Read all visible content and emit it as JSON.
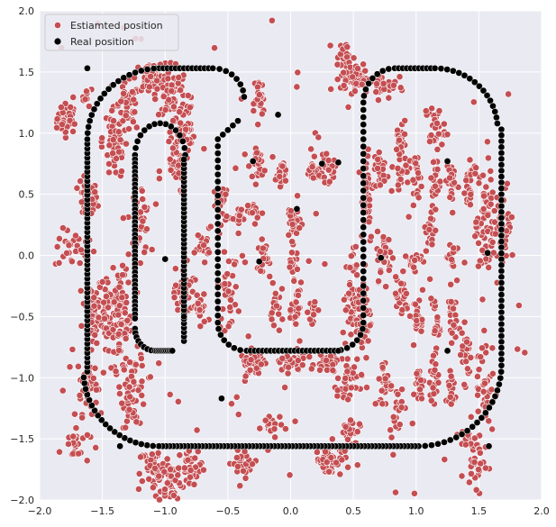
{
  "chart_data": {
    "type": "scatter",
    "title": "",
    "xlabel": "",
    "ylabel": "",
    "xlim": [
      -2.0,
      2.0
    ],
    "ylim": [
      -2.0,
      2.0
    ],
    "xticks": [
      -2.0,
      -1.5,
      -1.0,
      -0.5,
      0.0,
      0.5,
      1.0,
      1.5,
      2.0
    ],
    "yticks": [
      -2.0,
      -1.5,
      -1.0,
      -0.5,
      0.0,
      0.5,
      1.0,
      1.5,
      2.0
    ],
    "xtick_labels": [
      "−2.0",
      "−1.5",
      "−1.0",
      "−0.5",
      "0.0",
      "0.5",
      "1.0",
      "1.5",
      "2.0"
    ],
    "ytick_labels": [
      "−2.0",
      "−1.5",
      "−1.0",
      "−0.5",
      "0.0",
      "0.5",
      "1.0",
      "1.5",
      "2.0"
    ],
    "grid": true,
    "legend_position": "top-left",
    "background_color": "#eaeaf2",
    "series": [
      {
        "name": "Estiamted position",
        "color": "#c44e52",
        "description_points": "Noisy estimated positions scattered around the real trajectory, forming vertical clusters.",
        "clusters": [
          {
            "x": -1.78,
            "y": 1.12,
            "sx": 0.04,
            "sy": 0.06,
            "n": 40
          },
          {
            "x": -1.62,
            "y": 1.3,
            "sx": 0.02,
            "sy": 0.04,
            "n": 10
          },
          {
            "x": -1.62,
            "y": 0.45,
            "sx": 0.04,
            "sy": 0.08,
            "n": 40
          },
          {
            "x": -1.72,
            "y": 0.05,
            "sx": 0.08,
            "sy": 0.08,
            "n": 30
          },
          {
            "x": -1.58,
            "y": -0.45,
            "sx": 0.04,
            "sy": 0.15,
            "n": 50
          },
          {
            "x": -1.62,
            "y": -1.05,
            "sx": 0.04,
            "sy": 0.12,
            "n": 40
          },
          {
            "x": -1.72,
            "y": -1.55,
            "sx": 0.06,
            "sy": 0.08,
            "n": 25
          },
          {
            "x": -1.45,
            "y": -0.45,
            "sx": 0.04,
            "sy": 0.15,
            "n": 50
          },
          {
            "x": -1.35,
            "y": -0.55,
            "sx": 0.04,
            "sy": 0.2,
            "n": 70
          },
          {
            "x": -1.4,
            "y": 0.9,
            "sx": 0.05,
            "sy": 0.15,
            "n": 50
          },
          {
            "x": -1.3,
            "y": 1.2,
            "sx": 0.05,
            "sy": 0.1,
            "n": 40
          },
          {
            "x": -1.25,
            "y": -1.1,
            "sx": 0.05,
            "sy": 0.15,
            "n": 60
          },
          {
            "x": -1.2,
            "y": 0.3,
            "sx": 0.04,
            "sy": 0.15,
            "n": 40
          },
          {
            "x": -1.12,
            "y": 1.45,
            "sx": 0.06,
            "sy": 0.06,
            "n": 50
          },
          {
            "x": -1.08,
            "y": -1.75,
            "sx": 0.06,
            "sy": 0.1,
            "n": 50
          },
          {
            "x": -0.95,
            "y": 1.35,
            "sx": 0.06,
            "sy": 0.12,
            "n": 60
          },
          {
            "x": -0.95,
            "y": -1.85,
            "sx": 0.05,
            "sy": 0.1,
            "n": 40
          },
          {
            "x": -0.92,
            "y": 0.75,
            "sx": 0.04,
            "sy": 0.12,
            "n": 40
          },
          {
            "x": -0.85,
            "y": -0.3,
            "sx": 0.04,
            "sy": 0.1,
            "n": 30
          },
          {
            "x": -0.85,
            "y": 1.05,
            "sx": 0.04,
            "sy": 0.12,
            "n": 40
          },
          {
            "x": -0.78,
            "y": -1.75,
            "sx": 0.05,
            "sy": 0.08,
            "n": 30
          },
          {
            "x": -0.72,
            "y": -0.45,
            "sx": 0.03,
            "sy": 0.08,
            "n": 20
          },
          {
            "x": -0.7,
            "y": 0.1,
            "sx": 0.03,
            "sy": 0.06,
            "n": 20
          },
          {
            "x": -0.55,
            "y": 0.4,
            "sx": 0.03,
            "sy": 0.1,
            "n": 20
          },
          {
            "x": -0.5,
            "y": -0.3,
            "sx": 0.04,
            "sy": 0.15,
            "n": 30
          },
          {
            "x": -0.42,
            "y": 0.3,
            "sx": 0.03,
            "sy": 0.05,
            "n": 15
          },
          {
            "x": -0.38,
            "y": -1.7,
            "sx": 0.06,
            "sy": 0.06,
            "n": 30
          },
          {
            "x": -0.25,
            "y": 1.28,
            "sx": 0.02,
            "sy": 0.08,
            "n": 25
          },
          {
            "x": -0.25,
            "y": 0.75,
            "sx": 0.02,
            "sy": 0.06,
            "n": 25
          },
          {
            "x": -0.28,
            "y": 0.37,
            "sx": 0.03,
            "sy": 0.03,
            "n": 15
          },
          {
            "x": -0.22,
            "y": 0.0,
            "sx": 0.02,
            "sy": 0.06,
            "n": 20
          },
          {
            "x": -0.3,
            "y": -0.88,
            "sx": 0.05,
            "sy": 0.05,
            "n": 40
          },
          {
            "x": -0.15,
            "y": -1.4,
            "sx": 0.04,
            "sy": 0.06,
            "n": 20
          },
          {
            "x": -0.08,
            "y": 0.68,
            "sx": 0.02,
            "sy": 0.05,
            "n": 25
          },
          {
            "x": -0.12,
            "y": -0.45,
            "sx": 0.02,
            "sy": 0.1,
            "n": 20
          },
          {
            "x": 0.02,
            "y": 0.28,
            "sx": 0.03,
            "sy": 0.08,
            "n": 30
          },
          {
            "x": 0.02,
            "y": -0.05,
            "sx": 0.02,
            "sy": 0.06,
            "n": 20
          },
          {
            "x": 0.05,
            "y": -0.45,
            "sx": 0.02,
            "sy": 0.1,
            "n": 25
          },
          {
            "x": 0.0,
            "y": -0.88,
            "sx": 0.06,
            "sy": 0.04,
            "n": 40
          },
          {
            "x": 0.18,
            "y": 0.68,
            "sx": 0.03,
            "sy": 0.05,
            "n": 25
          },
          {
            "x": 0.18,
            "y": -0.45,
            "sx": 0.02,
            "sy": 0.08,
            "n": 15
          },
          {
            "x": 0.3,
            "y": 0.7,
            "sx": 0.03,
            "sy": 0.05,
            "n": 25
          },
          {
            "x": 0.3,
            "y": -0.88,
            "sx": 0.05,
            "sy": 0.04,
            "n": 30
          },
          {
            "x": 0.3,
            "y": -1.68,
            "sx": 0.05,
            "sy": 0.06,
            "n": 50
          },
          {
            "x": 0.45,
            "y": -1.5,
            "sx": 0.05,
            "sy": 0.1,
            "n": 30
          },
          {
            "x": 0.48,
            "y": -0.35,
            "sx": 0.03,
            "sy": 0.2,
            "n": 40
          },
          {
            "x": 0.45,
            "y": -1.05,
            "sx": 0.04,
            "sy": 0.1,
            "n": 30
          },
          {
            "x": 0.42,
            "y": 1.62,
            "sx": 0.04,
            "sy": 0.06,
            "n": 25
          },
          {
            "x": 0.52,
            "y": 1.45,
            "sx": 0.06,
            "sy": 0.06,
            "n": 60
          },
          {
            "x": 0.58,
            "y": -0.5,
            "sx": 0.03,
            "sy": 0.2,
            "n": 50
          },
          {
            "x": 0.6,
            "y": 0.5,
            "sx": 0.03,
            "sy": 0.2,
            "n": 40
          },
          {
            "x": 0.75,
            "y": 0.0,
            "sx": 0.03,
            "sy": 0.1,
            "n": 35
          },
          {
            "x": 0.72,
            "y": 0.7,
            "sx": 0.03,
            "sy": 0.08,
            "n": 30
          },
          {
            "x": 0.75,
            "y": -1.05,
            "sx": 0.03,
            "sy": 0.1,
            "n": 30
          },
          {
            "x": 0.75,
            "y": 1.4,
            "sx": 0.05,
            "sy": 0.06,
            "n": 30
          },
          {
            "x": 0.88,
            "y": 0.7,
            "sx": 0.03,
            "sy": 0.06,
            "n": 25
          },
          {
            "x": 0.88,
            "y": -0.35,
            "sx": 0.03,
            "sy": 0.08,
            "n": 20
          },
          {
            "x": 0.87,
            "y": 0.95,
            "sx": 0.03,
            "sy": 0.08,
            "n": 20
          },
          {
            "x": 0.85,
            "y": -1.25,
            "sx": 0.03,
            "sy": 0.1,
            "n": 20
          },
          {
            "x": 0.98,
            "y": -0.05,
            "sx": 0.03,
            "sy": 0.06,
            "n": 20
          },
          {
            "x": 1.0,
            "y": 0.65,
            "sx": 0.02,
            "sy": 0.08,
            "n": 20
          },
          {
            "x": 1.02,
            "y": -0.5,
            "sx": 0.02,
            "sy": 0.08,
            "n": 20
          },
          {
            "x": 1.02,
            "y": -1.05,
            "sx": 0.02,
            "sy": 0.08,
            "n": 20
          },
          {
            "x": 1.12,
            "y": 0.2,
            "sx": 0.02,
            "sy": 0.1,
            "n": 20
          },
          {
            "x": 1.15,
            "y": 1.05,
            "sx": 0.04,
            "sy": 0.1,
            "n": 30
          },
          {
            "x": 1.15,
            "y": 0.6,
            "sx": 0.02,
            "sy": 0.1,
            "n": 20
          },
          {
            "x": 1.15,
            "y": -0.55,
            "sx": 0.02,
            "sy": 0.1,
            "n": 20
          },
          {
            "x": 1.15,
            "y": -1.05,
            "sx": 0.02,
            "sy": 0.1,
            "n": 20
          },
          {
            "x": 1.28,
            "y": 0.6,
            "sx": 0.02,
            "sy": 0.1,
            "n": 25
          },
          {
            "x": 1.28,
            "y": 0.0,
            "sx": 0.02,
            "sy": 0.08,
            "n": 20
          },
          {
            "x": 1.28,
            "y": -0.5,
            "sx": 0.02,
            "sy": 0.1,
            "n": 20
          },
          {
            "x": 1.28,
            "y": -1.1,
            "sx": 0.02,
            "sy": 0.1,
            "n": 20
          },
          {
            "x": 1.4,
            "y": -0.8,
            "sx": 0.02,
            "sy": 0.12,
            "n": 25
          },
          {
            "x": 1.42,
            "y": 0.55,
            "sx": 0.02,
            "sy": 0.12,
            "n": 25
          },
          {
            "x": 1.42,
            "y": -1.5,
            "sx": 0.05,
            "sy": 0.05,
            "n": 20
          },
          {
            "x": 1.55,
            "y": 0.2,
            "sx": 0.04,
            "sy": 0.25,
            "n": 60
          },
          {
            "x": 1.55,
            "y": -1.05,
            "sx": 0.04,
            "sy": 0.2,
            "n": 40
          },
          {
            "x": 1.7,
            "y": 0.25,
            "sx": 0.04,
            "sy": 0.15,
            "n": 40
          },
          {
            "x": 1.5,
            "y": -1.7,
            "sx": 0.05,
            "sy": 0.08,
            "n": 20
          }
        ]
      },
      {
        "name": "Real position",
        "color": "#000000",
        "description_points": "Ground-truth trajectory: outer rounded loop with an inner oval on the left.",
        "outer_loop": {
          "top_y": 1.53,
          "bottom_y": -1.56,
          "top_left_x": -1.08,
          "top_right_x": 1.15,
          "left_x": -1.62,
          "right_x": 1.68,
          "bottom_left_x": -1.3,
          "bottom_right_x": 1.25,
          "inner_left_x": -0.58,
          "inner_right_x": 0.58,
          "inner_bottom_y": -0.78
        },
        "inner_oval": {
          "cx": -1.04,
          "top_y": 1.08,
          "bottom_y": -0.78,
          "left_x": -1.28,
          "right_x": -0.85
        },
        "count_approx": 420
      }
    ]
  }
}
